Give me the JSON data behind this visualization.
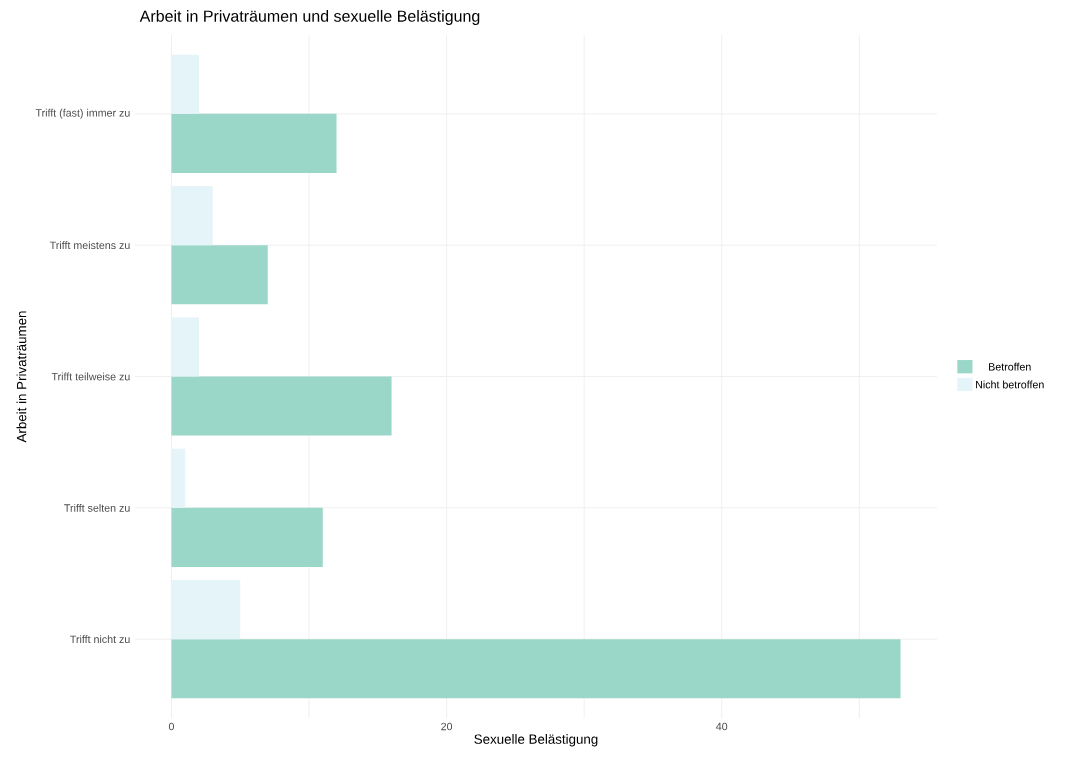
{
  "chart_data": {
    "type": "bar",
    "orientation": "horizontal",
    "title": "Arbeit in Privaträumen und sexuelle Belästigung",
    "xlabel": "Sexuelle Belästigung",
    "ylabel": "Arbeit in Privaträumen",
    "categories": [
      "Trifft (fast) immer zu",
      "Trifft meistens zu",
      "Trifft teilweise zu",
      "Trifft selten zu",
      "Trifft nicht zu"
    ],
    "series": [
      {
        "name": "Betroffen",
        "color": "#9ad7c8",
        "values": [
          12,
          7,
          16,
          11,
          53
        ]
      },
      {
        "name": "Nicht betroffen",
        "color": "#e5f4f8",
        "values": [
          2,
          3,
          2,
          1,
          5
        ]
      }
    ],
    "xlim": [
      -2.65,
      55.65
    ],
    "xticks": [
      0,
      {
        "value": 10,
        "label": null
      },
      20,
      {
        "value": 30,
        "label": null
      },
      40,
      {
        "value": 50,
        "label": null
      }
    ],
    "grid": true,
    "legend": "right"
  }
}
